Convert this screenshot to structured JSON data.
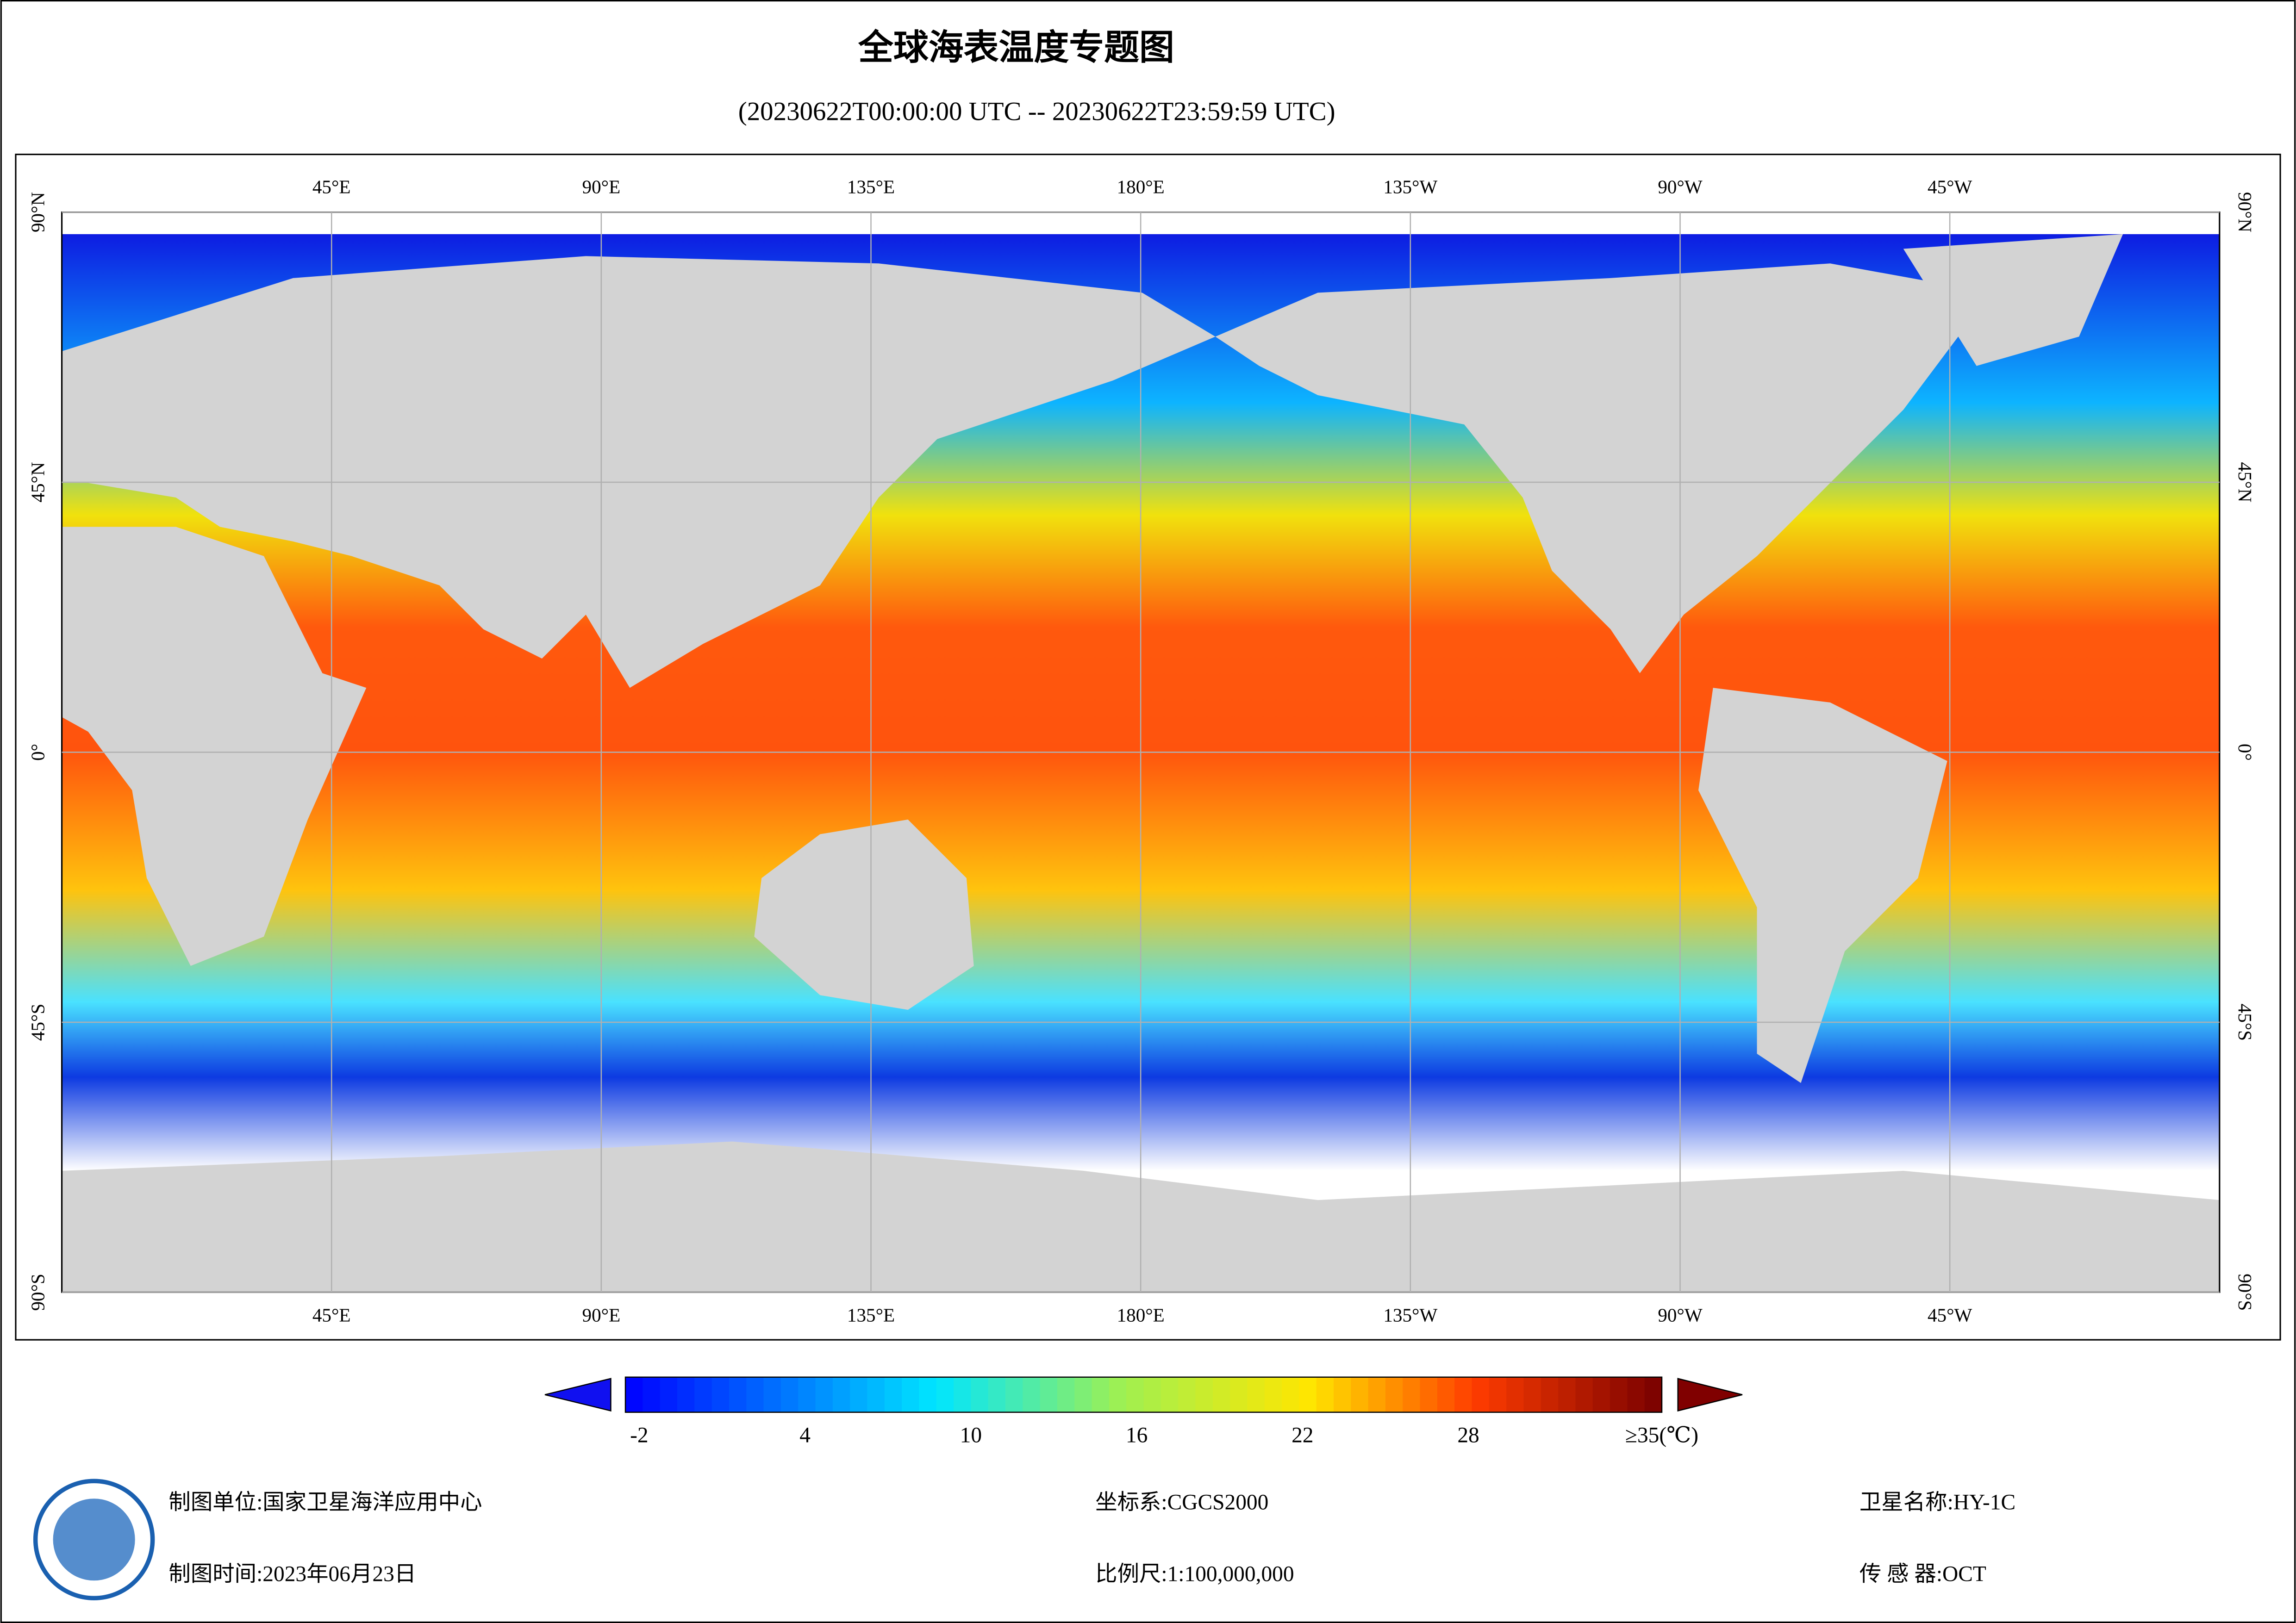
{
  "title": "全球海表温度专题图",
  "subtitle": "(20230622T00:00:00 UTC -- 20230622T23:59:59 UTC)",
  "map": {
    "lon_ticks": [
      {
        "value": 45,
        "label": "45°E"
      },
      {
        "value": 90,
        "label": "90°E"
      },
      {
        "value": 135,
        "label": "135°E"
      },
      {
        "value": 180,
        "label": "180°E"
      },
      {
        "value": 225,
        "label": "135°W"
      },
      {
        "value": 270,
        "label": "90°W"
      },
      {
        "value": 315,
        "label": "45°W"
      }
    ],
    "lat_ticks": [
      {
        "value": 90,
        "label": "90°N"
      },
      {
        "value": 45,
        "label": "45°N"
      },
      {
        "value": 0,
        "label": "0°"
      },
      {
        "value": -45,
        "label": "45°S"
      },
      {
        "value": -90,
        "label": "90°S"
      }
    ],
    "lonlim": [
      0,
      360
    ],
    "latlim": [
      -90,
      90
    ]
  },
  "colorbar": {
    "lim": [
      -2.5,
      35
    ],
    "ticks": [
      -2,
      4,
      10,
      16,
      22,
      28,
      {
        "value": 35,
        "label": "≥35(℃)"
      }
    ]
  },
  "footer": {
    "unit": "制图单位:国家卫星海洋应用中心",
    "time": "制图时间:2023年06月23日",
    "crs": "坐标系:CGCS2000",
    "scale": "比例尺:1:100,000,000",
    "satellite": "卫星名称:HY-1C",
    "sensor": "传 感 器:OCT"
  }
}
